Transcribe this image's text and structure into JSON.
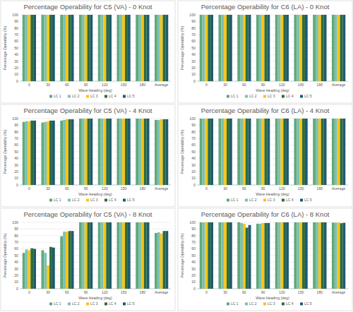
{
  "chart_data": [
    {
      "type": "bar",
      "title": "Percentage Operability for C5 (VA) - 0 Knot",
      "x_label": "Wave Heading (deg)",
      "y_label": "Percentage Operability (%)",
      "categories": [
        "0",
        "30",
        "60",
        "90",
        "120",
        "150",
        "180",
        "Average"
      ],
      "series": [
        {
          "name": "LC 1",
          "color": "#62a87c",
          "values": [
            100,
            100,
            100,
            100,
            100,
            100,
            100,
            100
          ]
        },
        {
          "name": "LC 2",
          "color": "#7cc1b1",
          "values": [
            100,
            100,
            100,
            100,
            100,
            100,
            100,
            100
          ]
        },
        {
          "name": "LC 3",
          "color": "#f5c518",
          "values": [
            100,
            100,
            100,
            100,
            100,
            100,
            100,
            100
          ]
        },
        {
          "name": "LC 4",
          "color": "#2e6b3c",
          "values": [
            100,
            100,
            100,
            100,
            100,
            100,
            100,
            100
          ]
        },
        {
          "name": "LC 5",
          "color": "#1e5b6e",
          "values": [
            100,
            100,
            100,
            100,
            100,
            100,
            100,
            100
          ]
        }
      ],
      "ylim": [
        0,
        100
      ],
      "yticks": [
        0,
        10,
        20,
        30,
        40,
        50,
        60,
        70,
        80,
        90,
        100
      ],
      "grid": true,
      "legend": "bottom"
    },
    {
      "type": "bar",
      "title": "Percentage Operability for C6 (LA) - 0 Knot",
      "x_label": "Wave Heading (deg)",
      "y_label": "Percentage Operability (%)",
      "categories": [
        "0",
        "30",
        "60",
        "90",
        "120",
        "150",
        "180",
        "Average"
      ],
      "series": [
        {
          "name": "LC 1",
          "color": "#62a87c",
          "values": [
            100,
            100,
            100,
            100,
            100,
            100,
            100,
            100
          ]
        },
        {
          "name": "LC 2",
          "color": "#7cc1b1",
          "values": [
            100,
            100,
            100,
            100,
            100,
            100,
            100,
            100
          ]
        },
        {
          "name": "LC 3",
          "color": "#f5c518",
          "values": [
            100,
            100,
            100,
            100,
            100,
            100,
            100,
            100
          ]
        },
        {
          "name": "LC 4",
          "color": "#2e6b3c",
          "values": [
            100,
            100,
            100,
            100,
            100,
            100,
            100,
            100
          ]
        },
        {
          "name": "LC 5",
          "color": "#1e5b6e",
          "values": [
            100,
            100,
            100,
            100,
            100,
            100,
            100,
            100
          ]
        }
      ],
      "ylim": [
        0,
        100
      ],
      "yticks": [
        0,
        10,
        20,
        30,
        40,
        50,
        60,
        70,
        80,
        90,
        100
      ],
      "grid": true,
      "legend": "bottom"
    },
    {
      "type": "bar",
      "title": "Percentage Operability for C5 (VA) - 4 Knot",
      "x_label": "Wave Heading (deg)",
      "y_label": "Percentage Operability (%)",
      "categories": [
        "0",
        "30",
        "60",
        "90",
        "120",
        "150",
        "180",
        "Average"
      ],
      "series": [
        {
          "name": "LC 1",
          "color": "#62a87c",
          "values": [
            95,
            94,
            97,
            100,
            100,
            100,
            100,
            98
          ]
        },
        {
          "name": "LC 2",
          "color": "#7cc1b1",
          "values": [
            96,
            95,
            98,
            100,
            100,
            100,
            100,
            98
          ]
        },
        {
          "name": "LC 3",
          "color": "#f5c518",
          "values": [
            96,
            96,
            99,
            100,
            100,
            100,
            100,
            99
          ]
        },
        {
          "name": "LC 4",
          "color": "#2e6b3c",
          "values": [
            97,
            97,
            99,
            100,
            100,
            100,
            100,
            99
          ]
        },
        {
          "name": "LC 5",
          "color": "#1e5b6e",
          "values": [
            97,
            97,
            99,
            100,
            100,
            100,
            100,
            99
          ]
        }
      ],
      "ylim": [
        0,
        100
      ],
      "yticks": [
        0,
        10,
        20,
        30,
        40,
        50,
        60,
        70,
        80,
        90,
        100
      ],
      "grid": true,
      "legend": "bottom"
    },
    {
      "type": "bar",
      "title": "Percentage Operability for C6 (LA) - 4 Knot",
      "x_label": "Wave Heading (deg)",
      "y_label": "Percentage Operability (%)",
      "categories": [
        "0",
        "30",
        "60",
        "90",
        "120",
        "150",
        "180",
        "Average"
      ],
      "series": [
        {
          "name": "LC 1",
          "color": "#62a87c",
          "values": [
            100,
            100,
            100,
            100,
            100,
            100,
            100,
            100
          ]
        },
        {
          "name": "LC 2",
          "color": "#7cc1b1",
          "values": [
            100,
            100,
            100,
            100,
            100,
            100,
            100,
            100
          ]
        },
        {
          "name": "LC 3",
          "color": "#f5c518",
          "values": [
            100,
            100,
            100,
            100,
            100,
            100,
            100,
            100
          ]
        },
        {
          "name": "LC 4",
          "color": "#2e6b3c",
          "values": [
            100,
            100,
            100,
            100,
            100,
            100,
            100,
            100
          ]
        },
        {
          "name": "LC 5",
          "color": "#1e5b6e",
          "values": [
            100,
            100,
            100,
            100,
            100,
            100,
            100,
            100
          ]
        }
      ],
      "ylim": [
        0,
        100
      ],
      "yticks": [
        0,
        10,
        20,
        30,
        40,
        50,
        60,
        70,
        80,
        90,
        100
      ],
      "grid": true,
      "legend": "bottom"
    },
    {
      "type": "bar",
      "title": "Percentage Operability for C5 (VA) - 8 Knot",
      "x_label": "Wave Heading (deg)",
      "y_label": "Percentage Operability (%)",
      "categories": [
        "0",
        "30",
        "60",
        "90",
        "120",
        "150",
        "180",
        "Average"
      ],
      "series": [
        {
          "name": "LC 1",
          "color": "#62a87c",
          "values": [
            54,
            58,
            79,
            100,
            100,
            100,
            100,
            84
          ]
        },
        {
          "name": "LC 2",
          "color": "#7cc1b1",
          "values": [
            59,
            54,
            86,
            100,
            100,
            100,
            100,
            85
          ]
        },
        {
          "name": "LC 3",
          "color": "#f5c518",
          "values": [
            58,
            35,
            86,
            100,
            100,
            100,
            100,
            83
          ]
        },
        {
          "name": "LC 4",
          "color": "#2e6b3c",
          "values": [
            61,
            63,
            87,
            100,
            100,
            100,
            100,
            87
          ]
        },
        {
          "name": "LC 5",
          "color": "#1e5b6e",
          "values": [
            60,
            62,
            87,
            100,
            100,
            100,
            100,
            87
          ]
        }
      ],
      "ylim": [
        0,
        100
      ],
      "yticks": [
        0,
        10,
        20,
        30,
        40,
        50,
        60,
        70,
        80,
        90,
        100
      ],
      "grid": true,
      "legend": "bottom"
    },
    {
      "type": "bar",
      "title": "Percentage Operability for C6 (LA) - 8 Knot",
      "x_label": "Wave Heading (deg)",
      "y_label": "Percentage Operability (%)",
      "categories": [
        "0",
        "30",
        "60",
        "90",
        "120",
        "150",
        "180",
        "Average"
      ],
      "series": [
        {
          "name": "LC 1",
          "color": "#62a87c",
          "values": [
            100,
            100,
            100,
            98,
            100,
            100,
            100,
            99.6
          ]
        },
        {
          "name": "LC 2",
          "color": "#7cc1b1",
          "values": [
            100,
            100,
            99,
            98,
            100,
            100,
            100,
            99.6
          ]
        },
        {
          "name": "LC 3",
          "color": "#f5c518",
          "values": [
            100,
            100,
            98,
            99,
            100,
            100,
            100,
            99.6
          ]
        },
        {
          "name": "LC 4",
          "color": "#2e6b3c",
          "values": [
            100,
            100,
            92,
            99,
            100,
            100,
            100,
            98.7
          ]
        },
        {
          "name": "LC 5",
          "color": "#1e5b6e",
          "values": [
            100,
            100,
            96,
            99,
            100,
            100,
            100,
            99.3
          ]
        }
      ],
      "ylim": [
        0,
        100
      ],
      "yticks": [
        0,
        10,
        20,
        30,
        40,
        50,
        60,
        70,
        80,
        90,
        100
      ],
      "grid": true,
      "legend": "bottom"
    }
  ]
}
